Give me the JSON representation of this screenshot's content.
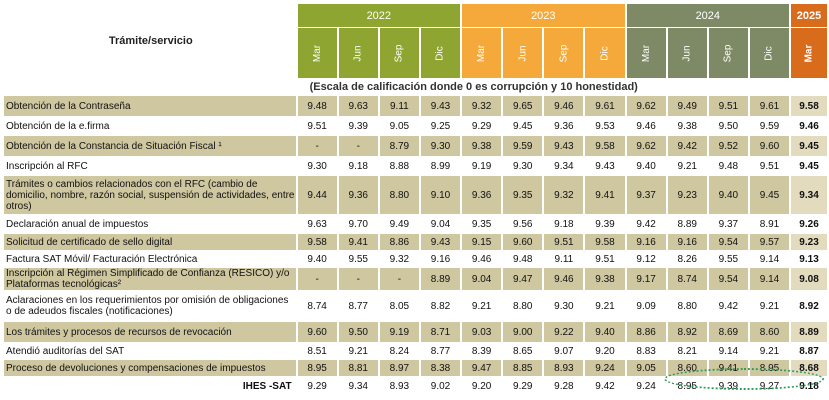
{
  "header": {
    "title": "Trámite/servicio",
    "years": [
      "2022",
      "2023",
      "2024",
      "2025"
    ],
    "months": [
      "Mar",
      "Jun",
      "Sep",
      "Dic",
      "Mar",
      "Jun",
      "Sep",
      "Dic",
      "Mar",
      "Jun",
      "Sep",
      "Dic",
      "Mar"
    ],
    "scale_note": "(Escala de calificación  donde 0 es corrupción y 10 honestidad)"
  },
  "rows": [
    {
      "name": "Obtención de la Contraseña",
      "v": [
        "9.48",
        "9.63",
        "9.11",
        "9.43",
        "9.32",
        "9.65",
        "9.46",
        "9.61",
        "9.62",
        "9.49",
        "9.51",
        "9.61",
        "9.58"
      ],
      "shade": "tan"
    },
    {
      "name": "Obtención de la e.firma",
      "v": [
        "9.51",
        "9.39",
        "9.05",
        "9.25",
        "9.29",
        "9.45",
        "9.36",
        "9.53",
        "9.46",
        "9.38",
        "9.50",
        "9.59",
        "9.46"
      ],
      "shade": "white"
    },
    {
      "name": "Obtención de la Constancia de Situación Fiscal ¹",
      "v": [
        "-",
        "-",
        "8.79",
        "9.30",
        "9.38",
        "9.59",
        "9.43",
        "9.58",
        "9.62",
        "9.42",
        "9.52",
        "9.60",
        "9.45"
      ],
      "shade": "tan"
    },
    {
      "name": "Inscripción  al RFC",
      "v": [
        "9.30",
        "9.18",
        "8.88",
        "8.99",
        "9.19",
        "9.30",
        "9.34",
        "9.43",
        "9.40",
        "9.21",
        "9.48",
        "9.51",
        "9.45"
      ],
      "shade": "white"
    },
    {
      "name": "Trámites o cambios relacionados con el RFC (cambio de domicilio, nombre, razón social, suspensión de actividades, entre otros)",
      "v": [
        "9.44",
        "9.36",
        "8.80",
        "9.10",
        "9.36",
        "9.35",
        "9.32",
        "9.41",
        "9.37",
        "9.23",
        "9.40",
        "9.45",
        "9.34"
      ],
      "shade": "tan"
    },
    {
      "name": "Declaración  anual de impuestos",
      "v": [
        "9.63",
        "9.70",
        "9.49",
        "9.04",
        "9.35",
        "9.56",
        "9.18",
        "9.39",
        "9.42",
        "8.89",
        "9.37",
        "8.91",
        "9.26"
      ],
      "shade": "white"
    },
    {
      "name": "Solicitud de certificado de sello digital",
      "v": [
        "9.58",
        "9.41",
        "8.86",
        "9.43",
        "9.15",
        "9.60",
        "9.51",
        "9.58",
        "9.16",
        "9.16",
        "9.54",
        "9.57",
        "9.23"
      ],
      "shade": "tan"
    },
    {
      "name": "Factura SAT Móvil/ Facturación  Electrónica",
      "v": [
        "9.40",
        "9.55",
        "9.32",
        "9.16",
        "9.46",
        "9.48",
        "9.11",
        "9.51",
        "9.12",
        "8.26",
        "9.55",
        "9.14",
        "9.13"
      ],
      "shade": "white"
    },
    {
      "name": "Inscripción al Régimen Simplificado de Confianza (RESICO) y/o Plataformas  tecnológicas²",
      "v": [
        "-",
        "-",
        "-",
        "8.89",
        "9.04",
        "9.47",
        "9.46",
        "9.38",
        "9.17",
        "8.74",
        "9.54",
        "9.14",
        "9.08"
      ],
      "shade": "tan"
    },
    {
      "name": "Aclaraciones  en los requerimientos  por  omisión de obligaciones  o  de adeudos fiscales  (notificaciones)",
      "v": [
        "8.74",
        "8.77",
        "8.05",
        "8.82",
        "9.21",
        "8.80",
        "9.30",
        "9.21",
        "9.09",
        "8.80",
        "9.42",
        "9.21",
        "8.92"
      ],
      "shade": "white"
    },
    {
      "name": "Los trámites y procesos de recursos de revocación",
      "v": [
        "9.60",
        "9.50",
        "9.19",
        "8.71",
        "9.03",
        "9.00",
        "9.22",
        "9.40",
        "8.86",
        "8.92",
        "8.69",
        "8.60",
        "8.89"
      ],
      "shade": "tan"
    },
    {
      "name": "Atendió auditorías del SAT",
      "v": [
        "8.51",
        "9.21",
        "8.24",
        "8.77",
        "8.39",
        "8.65",
        "9.07",
        "9.20",
        "8.83",
        "8.21",
        "9.14",
        "9.21",
        "8.87"
      ],
      "shade": "white"
    },
    {
      "name": "Proceso de devoluciones  y compensaciones  de impuestos",
      "v": [
        "8.95",
        "8.81",
        "8.97",
        "8.38",
        "9.47",
        "8.85",
        "8.93",
        "9.24",
        "9.05",
        "8.60",
        "9.41",
        "8.95",
        "8.68"
      ],
      "shade": "tan"
    }
  ],
  "footer": {
    "label": "IHES -SAT",
    "v": [
      "9.29",
      "9.34",
      "8.93",
      "9.02",
      "9.20",
      "9.29",
      "9.28",
      "9.42",
      "9.24",
      "8.95",
      "9.39",
      "9.27",
      "9.18"
    ]
  }
}
